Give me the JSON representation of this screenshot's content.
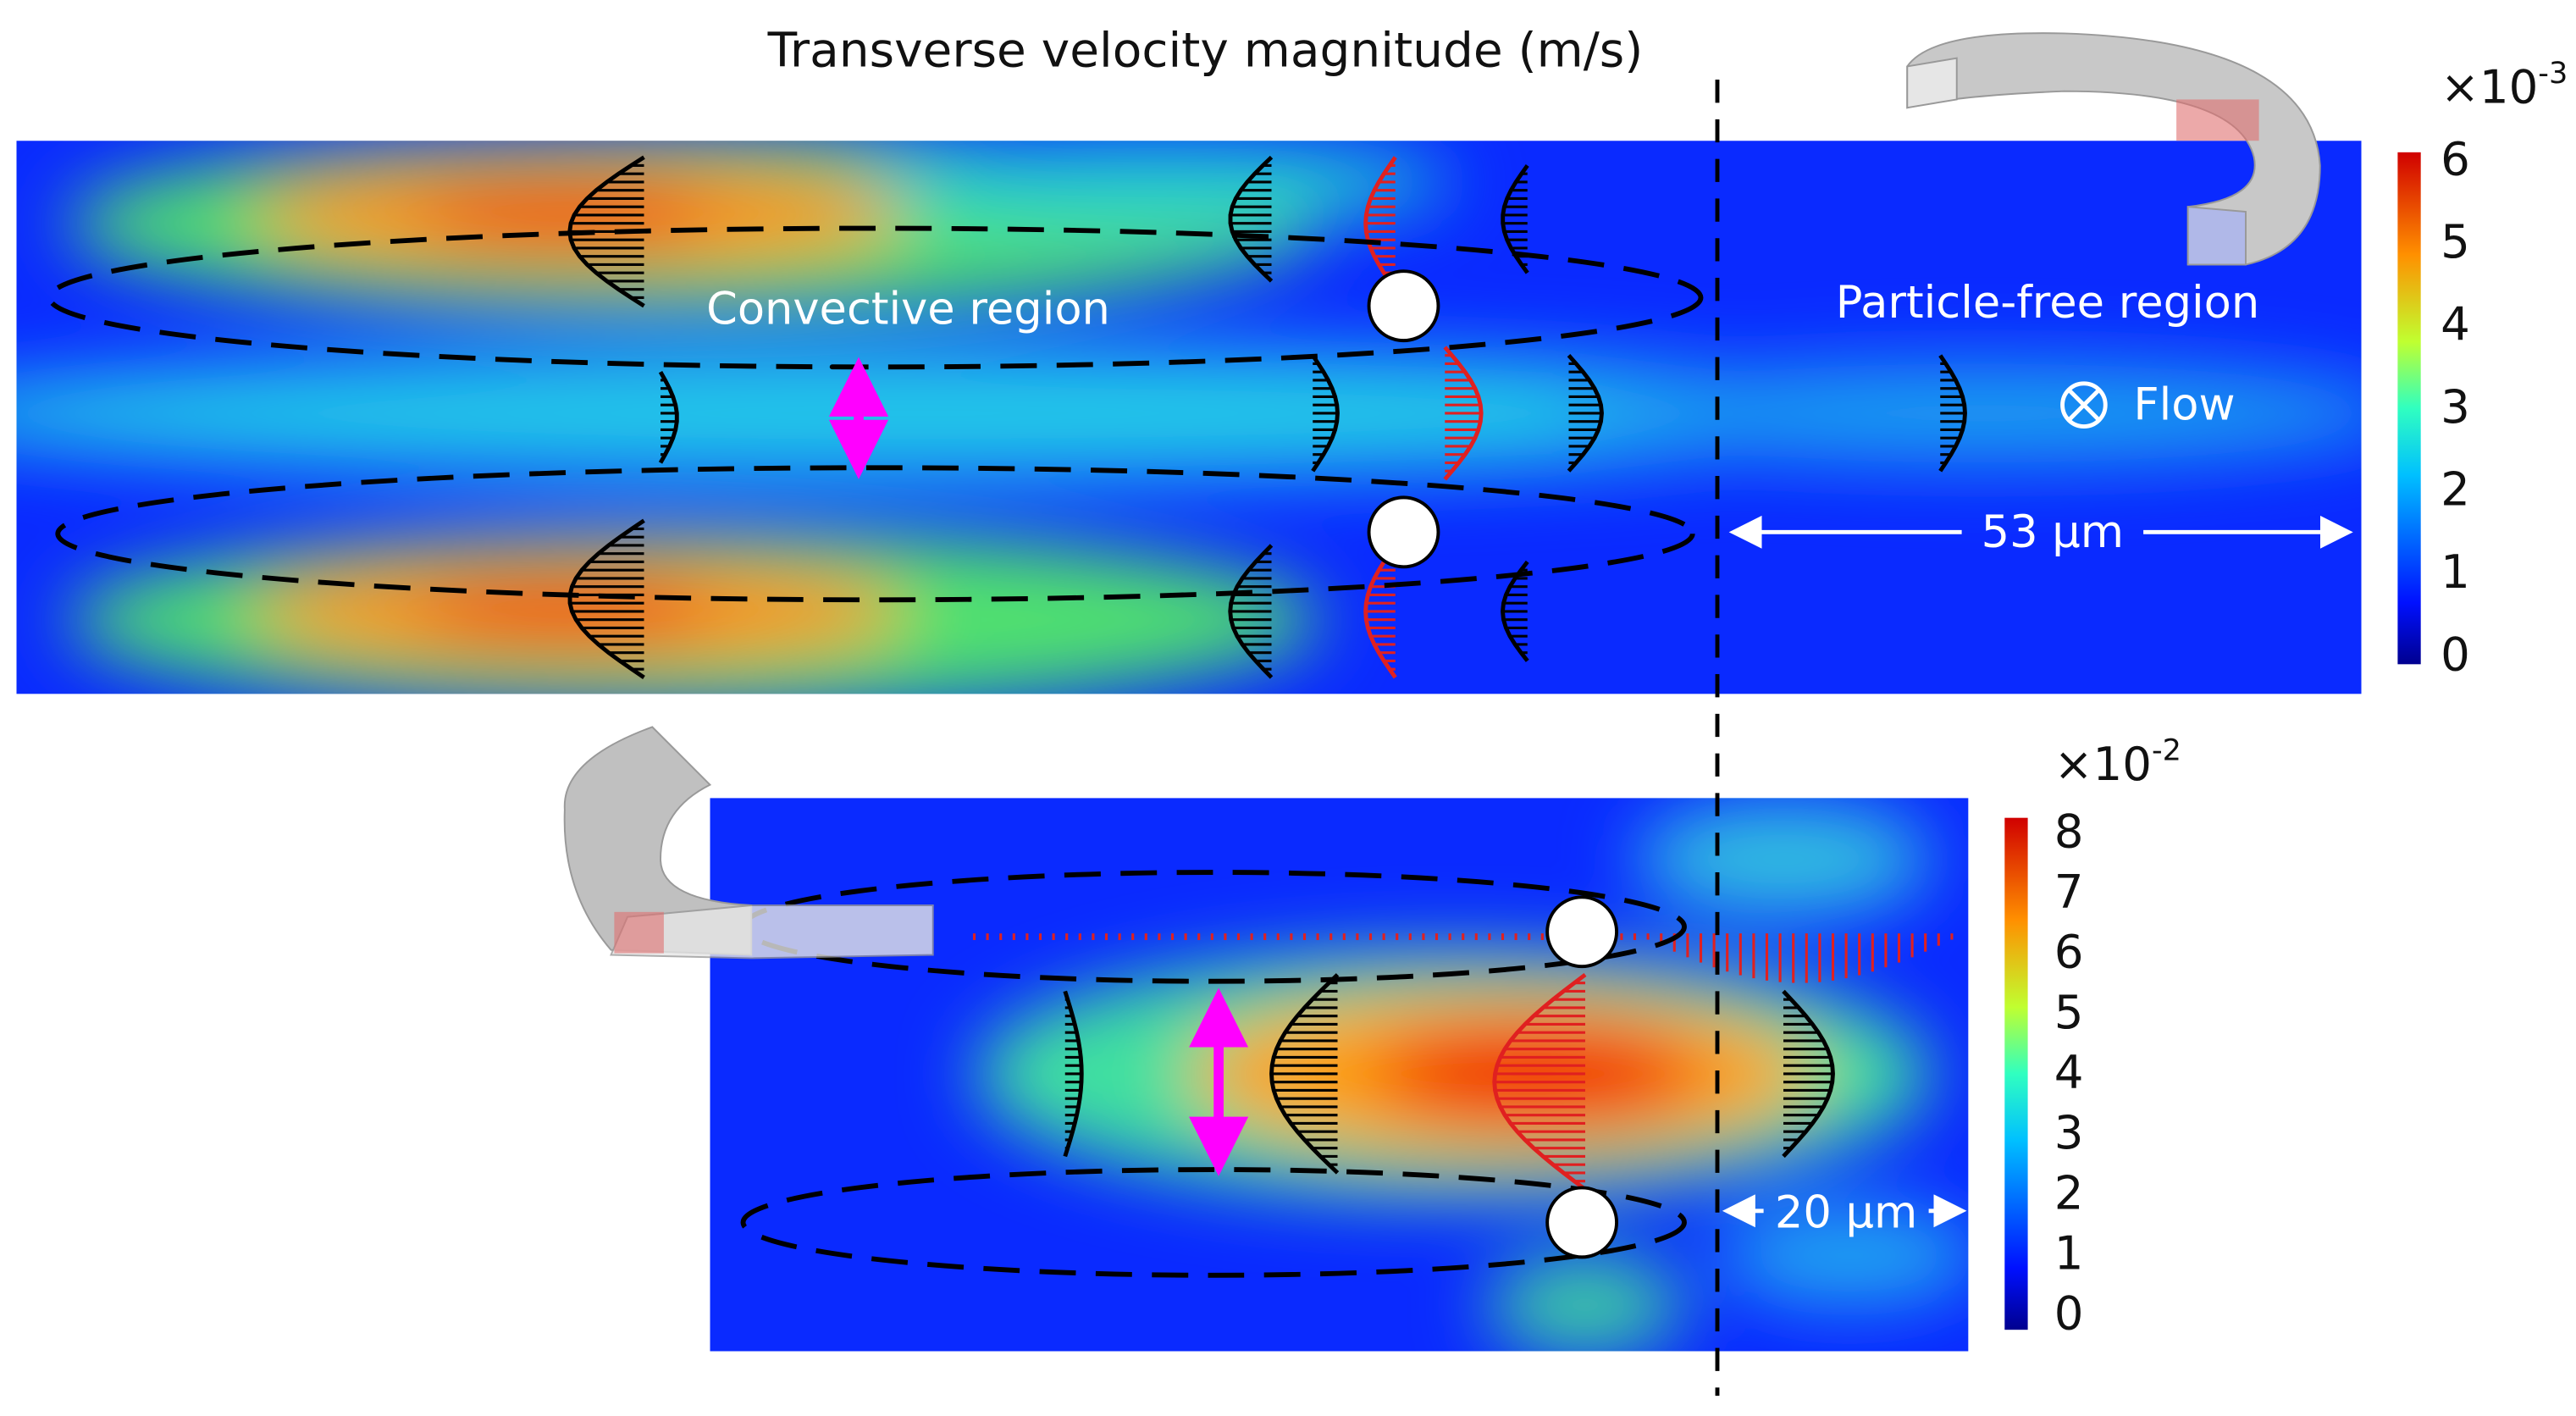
{
  "title": "Transverse velocity magnitude (m/s)",
  "top_panel": {
    "labels": {
      "convective": "Convective region",
      "particle_free": "Particle-free region",
      "flow": "Flow",
      "width": "53 µm"
    },
    "colorbar": {
      "multiplier": "×10",
      "exponent": "-3",
      "ticks": [
        0,
        1,
        2,
        3,
        4,
        5,
        6
      ]
    }
  },
  "bottom_panel": {
    "labels": {
      "width": "20 µm"
    },
    "colorbar": {
      "multiplier": "×10",
      "exponent": "-2",
      "ticks": [
        0,
        1,
        2,
        3,
        4,
        5,
        6,
        7,
        8
      ]
    }
  }
}
